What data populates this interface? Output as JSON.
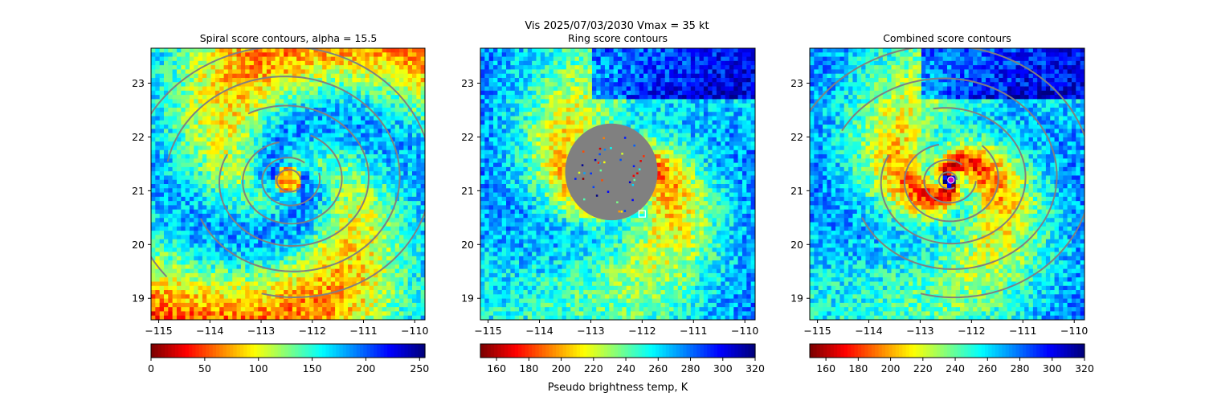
{
  "figure": {
    "suptitle_line1": "Vis  2025/07/03/2030    Vmax = 35 kt",
    "colorbar_label": "Pseudo brightness temp, K"
  },
  "chart_data": [
    {
      "type": "heatmap",
      "title": "Spiral score contours, alpha = 15.5",
      "x_ticks": [
        "−115",
        "−114",
        "−113",
        "−112",
        "−111",
        "−110"
      ],
      "x_tick_values": [
        -115,
        -114,
        -113,
        -112,
        -111,
        -110
      ],
      "y_ticks": [
        "19",
        "20",
        "21",
        "22",
        "23"
      ],
      "y_tick_values": [
        19,
        20,
        21,
        22,
        23
      ],
      "xlim": [
        -115.15,
        -109.8
      ],
      "ylim": [
        18.6,
        23.65
      ],
      "colormap": "jet_reversed",
      "colorbar_ticks": [
        "0",
        "50",
        "100",
        "150",
        "200",
        "250"
      ],
      "colorbar_tick_values": [
        0,
        50,
        100,
        150,
        200,
        250
      ],
      "colorbar_range": [
        0,
        255
      ],
      "storm_center": [
        -112.45,
        21.2
      ],
      "scene": "spiral",
      "contour_color": "#808080"
    },
    {
      "type": "heatmap",
      "title": "Ring score contours",
      "x_ticks": [
        "−115",
        "−114",
        "−113",
        "−112",
        "−111",
        "−110"
      ],
      "x_tick_values": [
        -115,
        -114,
        -113,
        -112,
        -111,
        -110
      ],
      "y_ticks": [
        "19",
        "20",
        "21",
        "22",
        "23"
      ],
      "y_tick_values": [
        19,
        20,
        21,
        22,
        23
      ],
      "xlim": [
        -115.15,
        -109.8
      ],
      "ylim": [
        18.6,
        23.65
      ],
      "colormap": "jet_reversed",
      "colorbar_ticks": [
        "160",
        "180",
        "200",
        "220",
        "240",
        "260",
        "280",
        "300",
        "320"
      ],
      "colorbar_tick_values": [
        160,
        180,
        200,
        220,
        240,
        260,
        280,
        300,
        320
      ],
      "colorbar_range": [
        150,
        320
      ],
      "storm_center": [
        -112.45,
        21.2
      ],
      "masked_disk": {
        "center": [
          -112.6,
          21.35
        ],
        "radius_deg": 0.9,
        "color": "#808080"
      },
      "ring_marker": {
        "lon": -112.0,
        "lat": 20.57,
        "shape": "square",
        "color": "#ffffff"
      },
      "scene": "ring"
    },
    {
      "type": "heatmap",
      "title": "Combined score contours",
      "x_ticks": [
        "−115",
        "−114",
        "−113",
        "−112",
        "−111",
        "−110"
      ],
      "x_tick_values": [
        -115,
        -114,
        -113,
        -112,
        -111,
        -110
      ],
      "y_ticks": [
        "19",
        "20",
        "21",
        "22",
        "23"
      ],
      "y_tick_values": [
        19,
        20,
        21,
        22,
        23
      ],
      "xlim": [
        -115.15,
        -109.8
      ],
      "ylim": [
        18.6,
        23.65
      ],
      "colormap": "jet_reversed",
      "colorbar_ticks": [
        "160",
        "180",
        "200",
        "220",
        "240",
        "260",
        "280",
        "300",
        "320"
      ],
      "colorbar_tick_values": [
        160,
        180,
        200,
        220,
        240,
        260,
        280,
        300,
        320
      ],
      "colorbar_range": [
        150,
        320
      ],
      "storm_center": [
        -112.45,
        21.2
      ],
      "center_marker": {
        "lon": -112.4,
        "lat": 21.2,
        "shape": "circle",
        "color": "#cc00cc"
      },
      "scene": "combined",
      "contour_color": "#808080"
    }
  ]
}
